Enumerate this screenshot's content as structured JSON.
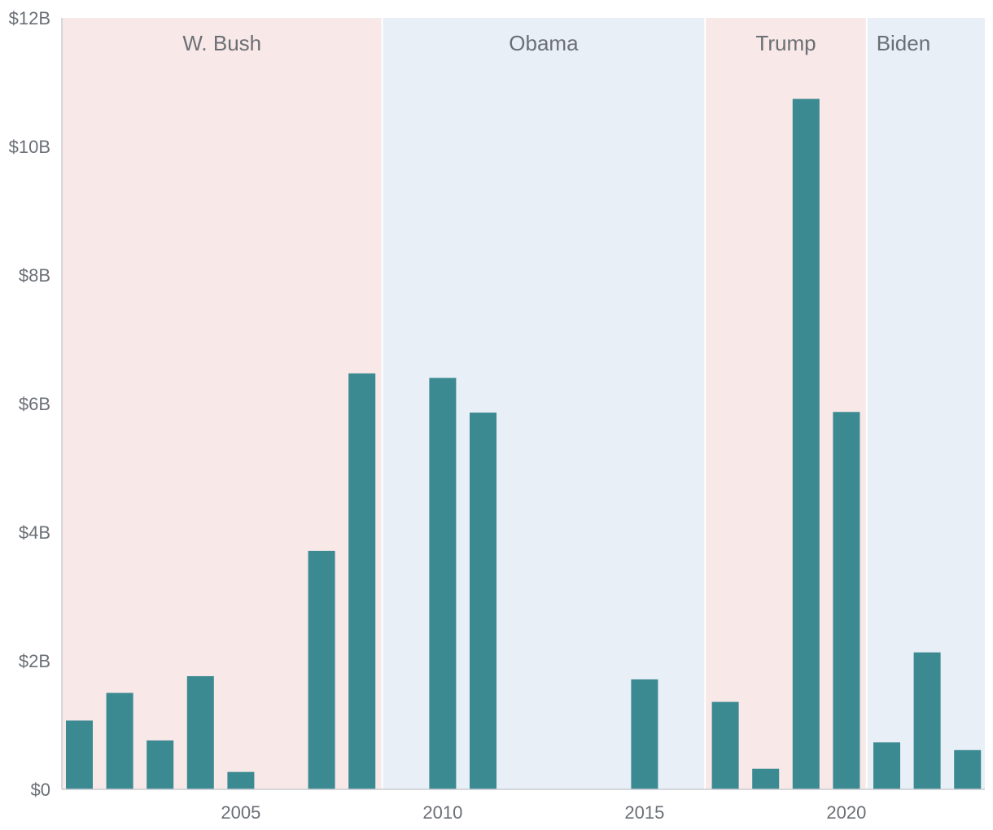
{
  "chart_data": {
    "type": "bar",
    "title": "",
    "xlabel": "",
    "ylabel": "",
    "ylim": [
      0,
      12
    ],
    "y_unit": "billion USD",
    "y_ticks": [
      {
        "value": 0,
        "label": "$0"
      },
      {
        "value": 2,
        "label": "$2B"
      },
      {
        "value": 4,
        "label": "$4B"
      },
      {
        "value": 6,
        "label": "$6B"
      },
      {
        "value": 8,
        "label": "$8B"
      },
      {
        "value": 10,
        "label": "$10B"
      },
      {
        "value": 12,
        "label": "$12B"
      }
    ],
    "x_ticks": [
      {
        "value": 2005,
        "label": "2005"
      },
      {
        "value": 2010,
        "label": "2010"
      },
      {
        "value": 2015,
        "label": "2015"
      },
      {
        "value": 2020,
        "label": "2020"
      }
    ],
    "years": [
      2001,
      2002,
      2003,
      2004,
      2005,
      2006,
      2007,
      2008,
      2009,
      2010,
      2011,
      2012,
      2013,
      2014,
      2015,
      2016,
      2017,
      2018,
      2019,
      2020,
      2021,
      2022,
      2023
    ],
    "values": [
      1.07,
      1.5,
      0.76,
      1.76,
      0.27,
      0,
      3.71,
      6.47,
      0,
      6.4,
      5.86,
      0,
      0,
      0,
      1.71,
      0,
      1.36,
      0.32,
      10.74,
      5.87,
      0.73,
      2.13,
      0.61
    ],
    "grid": false,
    "bar_color": "#3b8991",
    "eras": [
      {
        "label": "W. Bush",
        "start": 2001,
        "end": 2008,
        "color": "#f8e8e7"
      },
      {
        "label": "Obama",
        "start": 2009,
        "end": 2016,
        "color": "#e8eff7"
      },
      {
        "label": "Trump",
        "start": 2017,
        "end": 2020,
        "color": "#f8e8e7"
      },
      {
        "label": "Biden",
        "start": 2021,
        "end": 2023,
        "color": "#e8eff7"
      }
    ]
  }
}
